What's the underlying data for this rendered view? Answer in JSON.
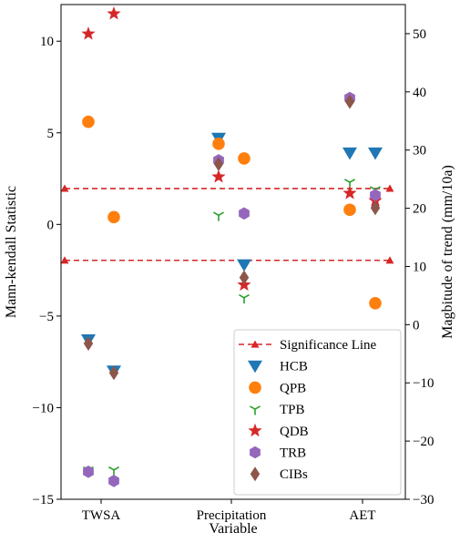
{
  "chart_data": {
    "type": "scatter",
    "categories": [
      "TWSA",
      "Precipitation",
      "AET"
    ],
    "xlabel": "Variable",
    "ylabel_left": "Mann-kendall Statistic",
    "ylabel_right": "Magbitude of trend (mm/10a)",
    "ylim_left": [
      -15,
      12
    ],
    "ylim_right": [
      -30,
      55
    ],
    "yticks_left": [
      "10",
      "5",
      "0",
      "−5",
      "−10",
      "−15"
    ],
    "yticks_right": [
      "50",
      "40",
      "30",
      "20",
      "10",
      "0",
      "−10",
      "−20",
      "−30"
    ],
    "grid": false,
    "legend_position": "lower-right",
    "significance_line": {
      "name": "Significance Line",
      "color": "#d62728",
      "levels": [
        1.96,
        -1.96
      ]
    },
    "series": [
      {
        "name": "HCB",
        "marker": "triangle-down",
        "color": "#1f77b4",
        "points": [
          {
            "cat": 0,
            "side": "left",
            "y": -6.3
          },
          {
            "cat": 0,
            "side": "right",
            "y": -8.0
          },
          {
            "cat": 1,
            "side": "left",
            "y": 4.7
          },
          {
            "cat": 1,
            "side": "right",
            "y": -2.2
          },
          {
            "cat": 2,
            "side": "left",
            "y": 3.9
          },
          {
            "cat": 2,
            "side": "right",
            "y": 3.9
          }
        ]
      },
      {
        "name": "QPB",
        "marker": "circle",
        "color": "#ff7f0e",
        "points": [
          {
            "cat": 0,
            "side": "left",
            "y": 5.6
          },
          {
            "cat": 0,
            "side": "right",
            "y": 0.4
          },
          {
            "cat": 1,
            "side": "left",
            "y": 4.4
          },
          {
            "cat": 1,
            "side": "right",
            "y": 3.6
          },
          {
            "cat": 2,
            "side": "left",
            "y": 0.8
          },
          {
            "cat": 2,
            "side": "right",
            "y": -4.3
          }
        ]
      },
      {
        "name": "TPB",
        "marker": "tri-down",
        "color": "#2ca02c",
        "points": [
          {
            "cat": 0,
            "side": "left",
            "y": -13.4
          },
          {
            "cat": 0,
            "side": "right",
            "y": -13.4
          },
          {
            "cat": 1,
            "side": "left",
            "y": 0.5
          },
          {
            "cat": 1,
            "side": "right",
            "y": -4.0
          },
          {
            "cat": 2,
            "side": "left",
            "y": 2.3
          },
          {
            "cat": 2,
            "side": "right",
            "y": 1.9
          }
        ]
      },
      {
        "name": "QDB",
        "marker": "star",
        "color": "#d62728",
        "points": [
          {
            "cat": 0,
            "side": "left",
            "y": 10.4
          },
          {
            "cat": 0,
            "side": "right",
            "y": 11.5
          },
          {
            "cat": 1,
            "side": "left",
            "y": 2.6
          },
          {
            "cat": 1,
            "side": "right",
            "y": -3.3
          },
          {
            "cat": 2,
            "side": "left",
            "y": 1.7
          },
          {
            "cat": 2,
            "side": "right",
            "y": 1.3
          }
        ]
      },
      {
        "name": "TRB",
        "marker": "hexagon",
        "color": "#9467bd",
        "points": [
          {
            "cat": 0,
            "side": "left",
            "y": -13.5
          },
          {
            "cat": 0,
            "side": "right",
            "y": -14.0
          },
          {
            "cat": 1,
            "side": "left",
            "y": 3.5
          },
          {
            "cat": 1,
            "side": "right",
            "y": 0.6
          },
          {
            "cat": 2,
            "side": "left",
            "y": 6.9
          },
          {
            "cat": 2,
            "side": "right",
            "y": 1.6
          }
        ]
      },
      {
        "name": "CIBs",
        "marker": "diamond",
        "color": "#8c564b",
        "points": [
          {
            "cat": 0,
            "side": "left",
            "y": -6.5
          },
          {
            "cat": 0,
            "side": "right",
            "y": -8.1
          },
          {
            "cat": 1,
            "side": "left",
            "y": 3.3
          },
          {
            "cat": 1,
            "side": "right",
            "y": -2.9
          },
          {
            "cat": 2,
            "side": "left",
            "y": 6.7
          },
          {
            "cat": 2,
            "side": "right",
            "y": 0.9
          }
        ]
      }
    ]
  }
}
